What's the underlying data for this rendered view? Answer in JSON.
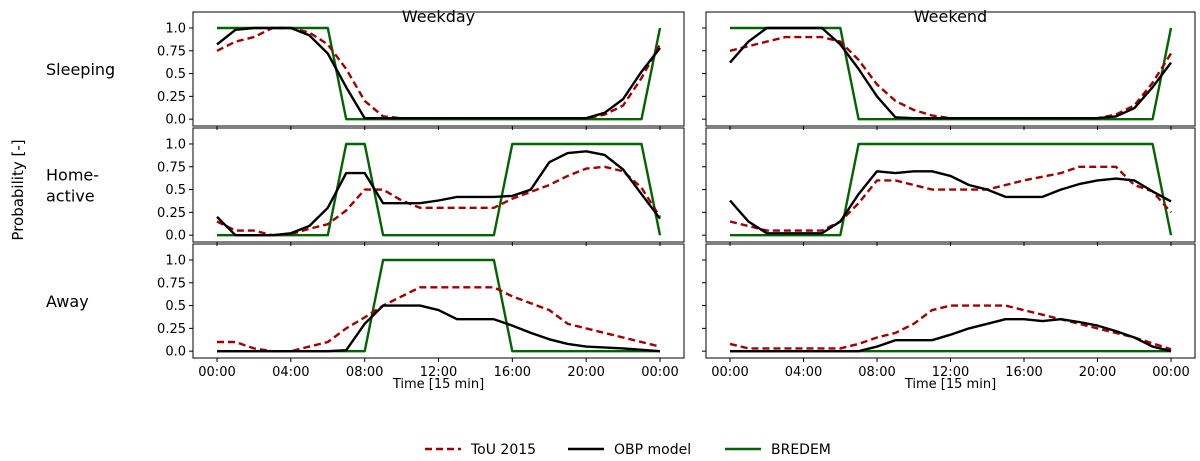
{
  "chart_data": {
    "type": "line",
    "ylabel": "Probability [-]",
    "xlabel": "Time [15 min]",
    "ylim": [
      0,
      1
    ],
    "xlim_hours": [
      0,
      24
    ],
    "yticks": [
      "0.0",
      "0.25",
      "0.5",
      "0.75",
      "1.0"
    ],
    "xticks": [
      "00:00",
      "04:00",
      "08:00",
      "12:00",
      "16:00",
      "20:00",
      "00:00"
    ],
    "columns": [
      "Weekday",
      "Weekend"
    ],
    "rows": [
      {
        "id": "sleeping",
        "label_lines": [
          "Sleeping"
        ]
      },
      {
        "id": "home_active",
        "label_lines": [
          "Home-",
          "active"
        ]
      },
      {
        "id": "away",
        "label_lines": [
          "Away"
        ]
      }
    ],
    "legend": [
      {
        "key": "tou",
        "label": "ToU 2015",
        "color": "#a00000",
        "dash": true
      },
      {
        "key": "obp",
        "label": "OBP model",
        "color": "#000000",
        "dash": false
      },
      {
        "key": "bredem",
        "label": "BREDEM",
        "color": "#006400",
        "dash": false
      }
    ],
    "panels": {
      "weekday": {
        "sleeping": {
          "tou": [
            [
              0,
              0.75
            ],
            [
              1,
              0.85
            ],
            [
              2,
              0.9
            ],
            [
              3,
              1.0
            ],
            [
              4,
              1.0
            ],
            [
              5,
              0.95
            ],
            [
              6,
              0.82
            ],
            [
              7,
              0.55
            ],
            [
              8,
              0.2
            ],
            [
              9,
              0.03
            ],
            [
              10,
              0.01
            ],
            [
              12,
              0.01
            ],
            [
              16,
              0.01
            ],
            [
              20,
              0.01
            ],
            [
              21,
              0.05
            ],
            [
              22,
              0.15
            ],
            [
              23,
              0.45
            ],
            [
              24,
              0.82
            ]
          ],
          "obp": [
            [
              0,
              0.82
            ],
            [
              1,
              0.98
            ],
            [
              2,
              1.0
            ],
            [
              3,
              1.0
            ],
            [
              4,
              1.0
            ],
            [
              5,
              0.92
            ],
            [
              6,
              0.72
            ],
            [
              7,
              0.35
            ],
            [
              8,
              0.01
            ],
            [
              12,
              0.01
            ],
            [
              16,
              0.01
            ],
            [
              20,
              0.01
            ],
            [
              21,
              0.07
            ],
            [
              22,
              0.22
            ],
            [
              23,
              0.52
            ],
            [
              24,
              0.78
            ]
          ],
          "bredem": [
            [
              0,
              1.0
            ],
            [
              6,
              1.0
            ],
            [
              7,
              0.0
            ],
            [
              23,
              0.0
            ],
            [
              24,
              1.0
            ]
          ]
        },
        "home_active": {
          "tou": [
            [
              0,
              0.15
            ],
            [
              1,
              0.05
            ],
            [
              2,
              0.05
            ],
            [
              3,
              0.0
            ],
            [
              4,
              0.01
            ],
            [
              5,
              0.07
            ],
            [
              6,
              0.12
            ],
            [
              7,
              0.27
            ],
            [
              8,
              0.5
            ],
            [
              9,
              0.5
            ],
            [
              10,
              0.38
            ],
            [
              11,
              0.3
            ],
            [
              13,
              0.3
            ],
            [
              15,
              0.3
            ],
            [
              16,
              0.4
            ],
            [
              18,
              0.55
            ],
            [
              19,
              0.65
            ],
            [
              20,
              0.73
            ],
            [
              21,
              0.75
            ],
            [
              22,
              0.7
            ],
            [
              23,
              0.52
            ],
            [
              24,
              0.2
            ]
          ],
          "obp": [
            [
              0,
              0.2
            ],
            [
              1,
              0.0
            ],
            [
              2,
              0.0
            ],
            [
              3,
              0.0
            ],
            [
              4,
              0.02
            ],
            [
              5,
              0.1
            ],
            [
              6,
              0.3
            ],
            [
              7,
              0.68
            ],
            [
              8,
              0.68
            ],
            [
              9,
              0.35
            ],
            [
              10,
              0.35
            ],
            [
              11,
              0.35
            ],
            [
              12,
              0.38
            ],
            [
              13,
              0.42
            ],
            [
              14,
              0.42
            ],
            [
              15,
              0.42
            ],
            [
              16,
              0.43
            ],
            [
              17,
              0.5
            ],
            [
              18,
              0.8
            ],
            [
              19,
              0.9
            ],
            [
              20,
              0.92
            ],
            [
              21,
              0.88
            ],
            [
              22,
              0.72
            ],
            [
              23,
              0.45
            ],
            [
              24,
              0.18
            ]
          ],
          "bredem": [
            [
              0,
              0.0
            ],
            [
              6,
              0.0
            ],
            [
              7,
              1.0
            ],
            [
              8,
              1.0
            ],
            [
              9,
              0.0
            ],
            [
              15,
              0.0
            ],
            [
              16,
              1.0
            ],
            [
              23,
              1.0
            ],
            [
              24,
              0.0
            ]
          ]
        },
        "away": {
          "tou": [
            [
              0,
              0.1
            ],
            [
              1,
              0.1
            ],
            [
              2,
              0.03
            ],
            [
              3,
              0.0
            ],
            [
              4,
              0.0
            ],
            [
              5,
              0.05
            ],
            [
              6,
              0.1
            ],
            [
              7,
              0.25
            ],
            [
              8,
              0.37
            ],
            [
              9,
              0.5
            ],
            [
              10,
              0.6
            ],
            [
              11,
              0.7
            ],
            [
              13,
              0.7
            ],
            [
              15,
              0.7
            ],
            [
              16,
              0.6
            ],
            [
              18,
              0.45
            ],
            [
              19,
              0.3
            ],
            [
              20,
              0.25
            ],
            [
              22,
              0.15
            ],
            [
              24,
              0.05
            ]
          ],
          "obp": [
            [
              0,
              0.0
            ],
            [
              3,
              0.0
            ],
            [
              6,
              0.0
            ],
            [
              7,
              0.01
            ],
            [
              8,
              0.3
            ],
            [
              9,
              0.5
            ],
            [
              11,
              0.5
            ],
            [
              12,
              0.45
            ],
            [
              13,
              0.35
            ],
            [
              15,
              0.35
            ],
            [
              16,
              0.28
            ],
            [
              17,
              0.2
            ],
            [
              18,
              0.13
            ],
            [
              19,
              0.08
            ],
            [
              20,
              0.05
            ],
            [
              22,
              0.03
            ],
            [
              24,
              0.0
            ]
          ],
          "bredem": [
            [
              0,
              0.0
            ],
            [
              8,
              0.0
            ],
            [
              9,
              1.0
            ],
            [
              15,
              1.0
            ],
            [
              16,
              0.0
            ],
            [
              24,
              0.0
            ]
          ]
        }
      },
      "weekend": {
        "sleeping": {
          "tou": [
            [
              0,
              0.75
            ],
            [
              1,
              0.8
            ],
            [
              2,
              0.85
            ],
            [
              3,
              0.9
            ],
            [
              5,
              0.9
            ],
            [
              6,
              0.85
            ],
            [
              7,
              0.65
            ],
            [
              8,
              0.38
            ],
            [
              9,
              0.2
            ],
            [
              10,
              0.1
            ],
            [
              11,
              0.04
            ],
            [
              12,
              0.01
            ],
            [
              16,
              0.01
            ],
            [
              20,
              0.01
            ],
            [
              21,
              0.05
            ],
            [
              22,
              0.15
            ],
            [
              23,
              0.4
            ],
            [
              24,
              0.72
            ]
          ],
          "obp": [
            [
              0,
              0.62
            ],
            [
              1,
              0.85
            ],
            [
              2,
              1.0
            ],
            [
              3,
              1.0
            ],
            [
              4,
              1.0
            ],
            [
              5,
              1.0
            ],
            [
              6,
              0.82
            ],
            [
              7,
              0.55
            ],
            [
              8,
              0.25
            ],
            [
              9,
              0.02
            ],
            [
              10,
              0.01
            ],
            [
              20,
              0.01
            ],
            [
              21,
              0.03
            ],
            [
              22,
              0.12
            ],
            [
              23,
              0.35
            ],
            [
              24,
              0.62
            ]
          ],
          "bredem": [
            [
              0,
              1.0
            ],
            [
              6,
              1.0
            ],
            [
              7,
              0.0
            ],
            [
              23,
              0.0
            ],
            [
              24,
              1.0
            ]
          ]
        },
        "home_active": {
          "tou": [
            [
              0,
              0.15
            ],
            [
              1,
              0.1
            ],
            [
              2,
              0.05
            ],
            [
              4,
              0.05
            ],
            [
              5,
              0.05
            ],
            [
              6,
              0.15
            ],
            [
              7,
              0.35
            ],
            [
              8,
              0.6
            ],
            [
              9,
              0.6
            ],
            [
              10,
              0.55
            ],
            [
              11,
              0.5
            ],
            [
              13,
              0.5
            ],
            [
              14,
              0.5
            ],
            [
              15,
              0.55
            ],
            [
              16,
              0.6
            ],
            [
              18,
              0.68
            ],
            [
              19,
              0.75
            ],
            [
              20,
              0.75
            ],
            [
              21,
              0.75
            ],
            [
              22,
              0.55
            ],
            [
              23,
              0.48
            ],
            [
              24,
              0.25
            ]
          ],
          "obp": [
            [
              0,
              0.38
            ],
            [
              1,
              0.15
            ],
            [
              2,
              0.02
            ],
            [
              3,
              0.02
            ],
            [
              4,
              0.02
            ],
            [
              5,
              0.02
            ],
            [
              6,
              0.15
            ],
            [
              7,
              0.45
            ],
            [
              8,
              0.7
            ],
            [
              9,
              0.68
            ],
            [
              10,
              0.7
            ],
            [
              11,
              0.7
            ],
            [
              12,
              0.65
            ],
            [
              13,
              0.55
            ],
            [
              14,
              0.5
            ],
            [
              15,
              0.42
            ],
            [
              16,
              0.42
            ],
            [
              17,
              0.42
            ],
            [
              18,
              0.5
            ],
            [
              19,
              0.56
            ],
            [
              20,
              0.6
            ],
            [
              21,
              0.62
            ],
            [
              22,
              0.6
            ],
            [
              23,
              0.48
            ],
            [
              24,
              0.37
            ]
          ],
          "bredem": [
            [
              0,
              0.0
            ],
            [
              6,
              0.0
            ],
            [
              7,
              1.0
            ],
            [
              23,
              1.0
            ],
            [
              24,
              0.0
            ]
          ]
        },
        "away": {
          "tou": [
            [
              0,
              0.08
            ],
            [
              1,
              0.03
            ],
            [
              2,
              0.03
            ],
            [
              5,
              0.03
            ],
            [
              6,
              0.03
            ],
            [
              7,
              0.08
            ],
            [
              8,
              0.15
            ],
            [
              9,
              0.2
            ],
            [
              10,
              0.3
            ],
            [
              11,
              0.45
            ],
            [
              12,
              0.5
            ],
            [
              14,
              0.5
            ],
            [
              15,
              0.5
            ],
            [
              17,
              0.4
            ],
            [
              18,
              0.35
            ],
            [
              19,
              0.3
            ],
            [
              20,
              0.25
            ],
            [
              22,
              0.15
            ],
            [
              24,
              0.02
            ]
          ],
          "obp": [
            [
              0,
              0.0
            ],
            [
              5,
              0.0
            ],
            [
              7,
              0.0
            ],
            [
              8,
              0.05
            ],
            [
              9,
              0.12
            ],
            [
              10,
              0.12
            ],
            [
              11,
              0.12
            ],
            [
              12,
              0.18
            ],
            [
              13,
              0.25
            ],
            [
              14,
              0.3
            ],
            [
              15,
              0.35
            ],
            [
              16,
              0.35
            ],
            [
              17,
              0.33
            ],
            [
              18,
              0.35
            ],
            [
              19,
              0.32
            ],
            [
              20,
              0.28
            ],
            [
              21,
              0.22
            ],
            [
              22,
              0.15
            ],
            [
              23,
              0.05
            ],
            [
              24,
              0.0
            ]
          ],
          "bredem": [
            [
              0,
              0.0
            ],
            [
              24,
              0.0
            ]
          ]
        }
      }
    }
  }
}
